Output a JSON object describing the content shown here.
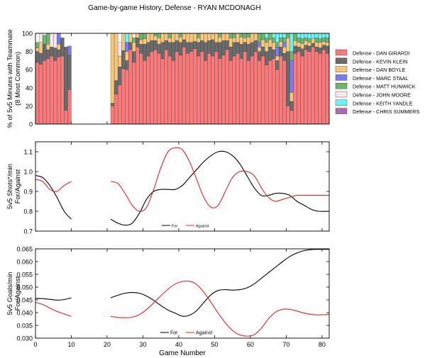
{
  "title": "Game-by-game History, Defense - RYAN MCDONAGH",
  "chart_data": [
    {
      "type": "bar",
      "stacked": true,
      "ylabel_lines": [
        "% of 5v5 Minutes with Teammate",
        "(8 Most Common)"
      ],
      "ylim": [
        0,
        100
      ],
      "yticks": [
        0,
        20,
        40,
        60,
        80,
        100
      ],
      "xlim": [
        0,
        82
      ],
      "legend_placement": "right",
      "series": [
        {
          "name": "Defense - DAN GIRARDI",
          "color": "#f87a7a"
        },
        {
          "name": "Defense - KEVIN KLEIN",
          "color": "#6b6b6b"
        },
        {
          "name": "Defense - DAN BOYLE",
          "color": "#f5c77e"
        },
        {
          "name": "Defense - MARC STAAL",
          "color": "#7b7bf0"
        },
        {
          "name": "Defense - MATT HUNWICK",
          "color": "#6fb46f"
        },
        {
          "name": "Defense - JOHN MOORE",
          "color": "#fbe7e7"
        },
        {
          "name": "Defense - KEITH YANDLE",
          "color": "#6ff2f2"
        },
        {
          "name": "Defense - CHRIS SUMMERS",
          "color": "#b06bb0"
        }
      ],
      "games": [
        [
          68,
          12,
          4,
          0,
          6,
          0,
          0,
          0
        ],
        [
          66,
          12,
          12,
          0,
          0,
          10,
          0,
          0
        ],
        [
          70,
          18,
          0,
          0,
          10,
          0,
          0,
          0
        ],
        [
          72,
          10,
          6,
          0,
          12,
          0,
          0,
          0
        ],
        [
          75,
          10,
          0,
          0,
          0,
          15,
          0,
          0
        ],
        [
          70,
          14,
          0,
          0,
          0,
          16,
          0,
          0
        ],
        [
          74,
          8,
          6,
          12,
          0,
          0,
          0,
          0
        ],
        [
          75,
          20,
          0,
          0,
          0,
          0,
          0,
          0
        ],
        [
          15,
          70,
          0,
          0,
          0,
          0,
          0,
          0
        ],
        [
          38,
          38,
          0,
          10,
          0,
          0,
          0,
          0
        ],
        [],
        [],
        [],
        [],
        [],
        [],
        [],
        [],
        [],
        [],
        [],
        [
          20,
          3,
          77,
          0,
          0,
          0,
          0,
          0
        ],
        [
          33,
          15,
          52,
          0,
          0,
          0,
          0,
          0
        ],
        [
          43,
          20,
          12,
          0,
          0,
          15,
          0,
          0
        ],
        [
          61,
          20,
          19,
          0,
          0,
          0,
          0,
          0
        ],
        [
          60,
          10,
          10,
          10,
          0,
          0,
          10,
          0
        ],
        [
          82,
          8,
          10,
          0,
          0,
          0,
          0,
          0
        ],
        [
          68,
          12,
          10,
          0,
          5,
          5,
          0,
          0
        ],
        [
          85,
          10,
          5,
          0,
          0,
          0,
          0,
          0
        ],
        [
          78,
          10,
          5,
          0,
          7,
          0,
          0,
          0
        ],
        [
          70,
          18,
          6,
          0,
          6,
          0,
          0,
          0
        ],
        [
          75,
          15,
          10,
          0,
          0,
          0,
          0,
          0
        ],
        [
          80,
          12,
          8,
          0,
          0,
          0,
          0,
          0
        ],
        [
          82,
          10,
          5,
          0,
          3,
          0,
          0,
          0
        ],
        [
          78,
          10,
          7,
          0,
          5,
          0,
          0,
          0
        ],
        [
          72,
          18,
          10,
          0,
          0,
          0,
          0,
          0
        ],
        [
          82,
          10,
          8,
          0,
          0,
          0,
          0,
          0
        ],
        [
          75,
          15,
          5,
          0,
          5,
          0,
          0,
          0
        ],
        [
          70,
          20,
          10,
          0,
          0,
          0,
          0,
          0
        ],
        [
          80,
          12,
          8,
          0,
          0,
          0,
          0,
          0
        ],
        [
          76,
          14,
          6,
          0,
          4,
          0,
          0,
          0
        ],
        [
          85,
          8,
          7,
          0,
          0,
          0,
          0,
          0
        ],
        [
          78,
          12,
          10,
          0,
          0,
          0,
          0,
          0
        ],
        [
          80,
          10,
          10,
          0,
          0,
          0,
          0,
          0
        ],
        [
          83,
          8,
          9,
          0,
          0,
          0,
          0,
          0
        ],
        [
          75,
          15,
          5,
          0,
          5,
          0,
          0,
          0
        ],
        [
          80,
          12,
          8,
          0,
          0,
          0,
          0,
          0
        ],
        [
          70,
          20,
          10,
          0,
          0,
          0,
          0,
          0
        ],
        [
          78,
          14,
          8,
          0,
          0,
          0,
          0,
          0
        ],
        [
          75,
          18,
          7,
          0,
          0,
          0,
          0,
          0
        ],
        [
          80,
          10,
          10,
          0,
          0,
          0,
          0,
          0
        ],
        [
          72,
          18,
          6,
          0,
          4,
          0,
          0,
          0
        ],
        [
          76,
          16,
          8,
          0,
          0,
          0,
          0,
          0
        ],
        [
          82,
          10,
          8,
          0,
          0,
          0,
          0,
          0
        ],
        [
          70,
          15,
          10,
          0,
          5,
          0,
          0,
          0
        ],
        [
          75,
          15,
          5,
          0,
          5,
          0,
          0,
          0
        ],
        [
          78,
          12,
          10,
          0,
          0,
          0,
          0,
          0
        ],
        [
          72,
          16,
          8,
          0,
          4,
          0,
          0,
          0
        ],
        [
          80,
          10,
          5,
          0,
          5,
          0,
          0,
          0
        ],
        [
          70,
          18,
          8,
          0,
          4,
          0,
          0,
          0
        ],
        [
          75,
          15,
          10,
          0,
          0,
          0,
          0,
          0
        ],
        [
          80,
          12,
          8,
          0,
          0,
          0,
          0,
          0
        ],
        [
          70,
          10,
          5,
          5,
          10,
          0,
          0,
          0
        ],
        [
          75,
          10,
          8,
          0,
          7,
          0,
          0,
          0
        ],
        [
          65,
          15,
          10,
          0,
          5,
          0,
          5,
          0
        ],
        [
          70,
          15,
          8,
          0,
          7,
          0,
          0,
          0
        ],
        [
          72,
          10,
          8,
          0,
          5,
          0,
          5,
          0
        ],
        [
          60,
          10,
          5,
          10,
          5,
          0,
          10,
          0
        ],
        [
          75,
          10,
          6,
          0,
          4,
          0,
          5,
          0
        ],
        [
          70,
          8,
          7,
          5,
          5,
          0,
          5,
          0
        ],
        [
          20,
          60,
          15,
          0,
          5,
          0,
          0,
          0
        ],
        [
          15,
          10,
          10,
          35,
          10,
          0,
          20,
          0
        ],
        [
          78,
          8,
          6,
          0,
          8,
          0,
          0,
          0
        ],
        [
          80,
          5,
          5,
          0,
          5,
          0,
          5,
          0
        ],
        [
          75,
          8,
          6,
          0,
          5,
          0,
          6,
          0
        ],
        [
          82,
          5,
          5,
          0,
          3,
          0,
          5,
          0
        ],
        [
          80,
          6,
          4,
          0,
          4,
          0,
          6,
          0
        ],
        [
          85,
          4,
          5,
          0,
          0,
          0,
          6,
          0
        ],
        [
          80,
          5,
          5,
          0,
          5,
          0,
          5,
          0
        ],
        [
          78,
          6,
          6,
          0,
          4,
          0,
          6,
          0
        ],
        [
          82,
          5,
          4,
          0,
          4,
          0,
          5,
          0
        ],
        [
          78,
          8,
          4,
          0,
          5,
          0,
          5,
          0
        ]
      ]
    },
    {
      "type": "line",
      "ylabel_lines": [
        "5v5 Shots*/min",
        "For/Against"
      ],
      "ylim": [
        0.7,
        1.15
      ],
      "yticks": [
        0.7,
        0.8,
        0.9,
        1.0,
        1.1
      ],
      "ytick_labels": [
        "0.7",
        "0.8",
        "0.9",
        "1.0",
        "1.1"
      ],
      "xlim": [
        0,
        82
      ],
      "legend_placement": "lower-center",
      "series": [
        {
          "name": "For",
          "color": "#000000",
          "segments": [
            {
              "x": [
                0,
                2,
                4,
                6,
                8,
                10
              ],
              "y": [
                0.98,
                0.97,
                0.93,
                0.87,
                0.8,
                0.76
              ]
            },
            {
              "x": [
                21,
                23,
                25,
                27,
                29,
                31,
                33,
                35,
                37,
                39,
                41,
                43,
                45,
                47,
                49,
                51,
                53,
                55,
                57,
                59,
                61,
                63,
                65,
                67,
                69,
                71,
                73,
                75,
                77,
                79,
                82
              ],
              "y": [
                0.76,
                0.74,
                0.73,
                0.74,
                0.79,
                0.86,
                0.9,
                0.91,
                0.91,
                0.91,
                0.93,
                0.97,
                1.01,
                1.05,
                1.08,
                1.1,
                1.1,
                1.08,
                1.04,
                0.98,
                0.92,
                0.88,
                0.88,
                0.89,
                0.89,
                0.88,
                0.85,
                0.83,
                0.81,
                0.8,
                0.8
              ]
            }
          ]
        },
        {
          "name": "Against",
          "color": "#e32626",
          "segments": [
            {
              "x": [
                0,
                2,
                4,
                6,
                8,
                10
              ],
              "y": [
                0.96,
                0.95,
                0.91,
                0.9,
                0.93,
                0.95
              ]
            },
            {
              "x": [
                21,
                23,
                25,
                27,
                29,
                31,
                33,
                35,
                37,
                39,
                41,
                43,
                45,
                47,
                49,
                51,
                53,
                55,
                57,
                59,
                61,
                63,
                65,
                67,
                69,
                71,
                73,
                75,
                77,
                79,
                82
              ],
              "y": [
                0.95,
                0.94,
                0.89,
                0.83,
                0.8,
                0.82,
                0.91,
                1.02,
                1.1,
                1.12,
                1.11,
                1.05,
                0.96,
                0.87,
                0.82,
                0.83,
                0.9,
                0.97,
                1.0,
                1.0,
                0.98,
                0.92,
                0.87,
                0.85,
                0.86,
                0.87,
                0.88,
                0.88,
                0.88,
                0.88,
                0.88
              ]
            }
          ]
        }
      ]
    },
    {
      "type": "line",
      "ylabel_lines": [
        "5v5 Goals/min",
        "For/Against"
      ],
      "xlabel": "Game Number",
      "ylim": [
        0.03,
        0.065
      ],
      "yticks": [
        0.03,
        0.035,
        0.04,
        0.045,
        0.05,
        0.055,
        0.06,
        0.065
      ],
      "ytick_labels": [
        "0.030",
        "0.035",
        "0.040",
        "0.045",
        "0.050",
        "0.055",
        "0.060",
        "0.065"
      ],
      "xlim": [
        0,
        82
      ],
      "xticks": [
        0,
        10,
        20,
        30,
        40,
        50,
        60,
        70,
        80
      ],
      "legend_placement": "lower-center",
      "series": [
        {
          "name": "For",
          "color": "#000000",
          "segments": [
            {
              "x": [
                0,
                2,
                4,
                6,
                8,
                10
              ],
              "y": [
                0.0456,
                0.0455,
                0.0452,
                0.0449,
                0.0451,
                0.0458
              ]
            },
            {
              "x": [
                21,
                23,
                25,
                27,
                29,
                31,
                33,
                35,
                37,
                39,
                41,
                43,
                45,
                47,
                49,
                51,
                53,
                55,
                57,
                59,
                61,
                63,
                65,
                67,
                69,
                71,
                73,
                75,
                77,
                79,
                82
              ],
              "y": [
                0.0458,
                0.0468,
                0.0476,
                0.0479,
                0.0476,
                0.0465,
                0.0448,
                0.0428,
                0.041,
                0.0398,
                0.0386,
                0.039,
                0.0408,
                0.044,
                0.047,
                0.0487,
                0.049,
                0.0488,
                0.049,
                0.0497,
                0.0512,
                0.0534,
                0.0556,
                0.0578,
                0.06,
                0.062,
                0.0634,
                0.0643,
                0.0647,
                0.0648,
                0.0648
              ]
            }
          ]
        },
        {
          "name": "Against",
          "color": "#e32626",
          "segments": [
            {
              "x": [
                0,
                2,
                4,
                6,
                8,
                10
              ],
              "y": [
                0.044,
                0.0432,
                0.0418,
                0.0405,
                0.0395,
                0.0385
              ]
            },
            {
              "x": [
                21,
                23,
                25,
                27,
                29,
                31,
                33,
                35,
                37,
                39,
                41,
                43,
                45,
                47,
                49,
                51,
                53,
                55,
                57,
                59,
                61,
                63,
                65,
                67,
                69,
                71,
                73,
                75,
                77,
                79,
                82
              ],
              "y": [
                0.0385,
                0.0381,
                0.038,
                0.0382,
                0.0392,
                0.0412,
                0.0438,
                0.0466,
                0.0492,
                0.0512,
                0.0522,
                0.0523,
                0.051,
                0.048,
                0.044,
                0.0398,
                0.036,
                0.033,
                0.0313,
                0.0308,
                0.0313,
                0.0338,
                0.0375,
                0.0402,
                0.0413,
                0.0413,
                0.0406,
                0.0398,
                0.0393,
                0.0391,
                0.0393
              ]
            }
          ]
        }
      ]
    }
  ]
}
